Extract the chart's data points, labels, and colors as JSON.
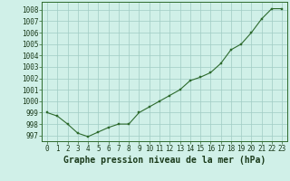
{
  "x": [
    0,
    1,
    2,
    3,
    4,
    5,
    6,
    7,
    8,
    9,
    10,
    11,
    12,
    13,
    14,
    15,
    16,
    17,
    18,
    19,
    20,
    21,
    22,
    23
  ],
  "y": [
    999.0,
    998.7,
    998.0,
    997.2,
    996.9,
    997.3,
    997.7,
    998.0,
    998.0,
    999.0,
    999.5,
    1000.0,
    1000.5,
    1001.0,
    1001.8,
    1002.1,
    1002.5,
    1003.3,
    1004.5,
    1005.0,
    1006.0,
    1007.2,
    1008.1,
    1008.1
  ],
  "line_color": "#2d6a2d",
  "marker_color": "#2d6a2d",
  "bg_color": "#d0f0e8",
  "grid_color": "#a0ccc4",
  "xlabel": "Graphe pression niveau de la mer (hPa)",
  "xlabel_fontsize": 7,
  "yticks": [
    997,
    998,
    999,
    1000,
    1001,
    1002,
    1003,
    1004,
    1005,
    1006,
    1007,
    1008
  ],
  "xticks": [
    0,
    1,
    2,
    3,
    4,
    5,
    6,
    7,
    8,
    9,
    10,
    11,
    12,
    13,
    14,
    15,
    16,
    17,
    18,
    19,
    20,
    21,
    22,
    23
  ],
  "ylim": [
    996.5,
    1008.7
  ],
  "xlim": [
    -0.5,
    23.5
  ],
  "tick_fontsize": 5.5,
  "marker_size": 2.0,
  "line_width": 0.8
}
